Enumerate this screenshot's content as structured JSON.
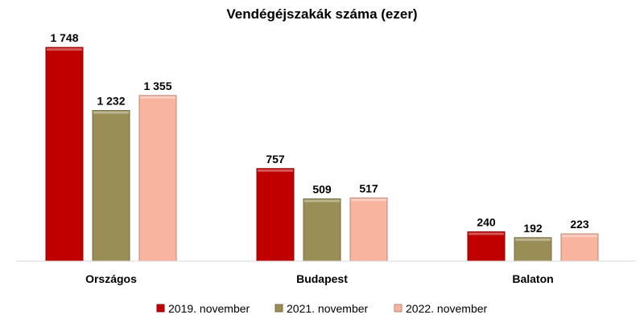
{
  "chart_data": {
    "type": "bar",
    "title": "Vendégéjszakák száma (ezer)",
    "xlabel": "",
    "ylabel": "",
    "categories": [
      "Országos",
      "Budapest",
      "Balaton"
    ],
    "series": [
      {
        "name": "2019. november",
        "color": "#c00000",
        "values": [
          1748,
          757,
          240
        ],
        "labels": [
          "1 748",
          "757",
          "240"
        ]
      },
      {
        "name": "2021. november",
        "color": "#998e56",
        "values": [
          1232,
          509,
          192
        ],
        "labels": [
          "1 232",
          "509",
          "192"
        ]
      },
      {
        "name": "2022. november",
        "color": "#f9b4a0",
        "values": [
          1355,
          517,
          223
        ],
        "labels": [
          "1 355",
          "517",
          "223"
        ]
      }
    ],
    "ylim": [
      0,
      1748
    ],
    "grid": false,
    "legend_position": "bottom"
  }
}
